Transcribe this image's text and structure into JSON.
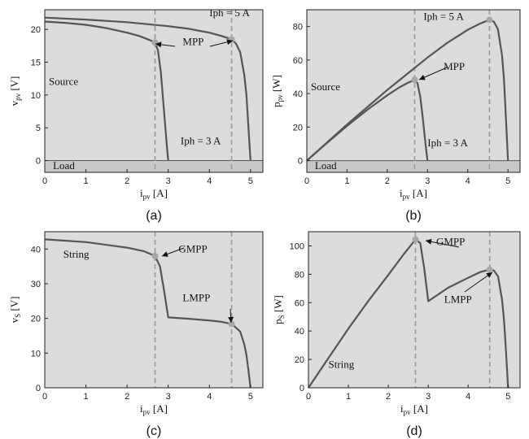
{
  "chart_data": [
    {
      "panel": "(a)",
      "type": "line",
      "xlabel": "i_pv [A]",
      "ylabel": "v_pv [V]",
      "xlim": [
        0,
        5.3
      ],
      "ylim": [
        -1.8,
        23
      ],
      "xticks": [
        0,
        1,
        2,
        3,
        4,
        5
      ],
      "yticks": [
        0,
        5,
        10,
        15,
        20
      ],
      "grid": false,
      "series": [
        {
          "name": "Iph = 5 A",
          "x": [
            0,
            1,
            2,
            3,
            3.5,
            4,
            4.3,
            4.54,
            4.65,
            4.75,
            4.85,
            4.9,
            4.95,
            4.98,
            5.0
          ],
          "y": [
            21.8,
            21.5,
            21.1,
            20.5,
            20.1,
            19.5,
            19.0,
            18.5,
            17.8,
            16.5,
            13.0,
            10.0,
            5.0,
            2.0,
            0
          ]
        },
        {
          "name": "Iph = 3 A",
          "x": [
            0,
            0.5,
            1,
            1.5,
            2,
            2.3,
            2.5,
            2.68,
            2.75,
            2.82,
            2.88,
            2.93,
            2.97,
            3.0
          ],
          "y": [
            21.2,
            21.0,
            20.7,
            20.2,
            19.5,
            19.0,
            18.5,
            18.0,
            16.8,
            13.5,
            9.0,
            5.0,
            2.0,
            0
          ]
        }
      ],
      "mpp": [
        {
          "x": 2.68,
          "y": 18.0
        },
        {
          "x": 4.54,
          "y": 18.5
        }
      ],
      "dashed_x": [
        2.68,
        4.54
      ],
      "zero_line": true,
      "load_band": [
        -1.8,
        0
      ],
      "annotations": [
        {
          "text": "Iph = 5 A",
          "x": 4.0,
          "y": 22.0
        },
        {
          "text": "MPP",
          "x": 3.35,
          "y": 17.6
        },
        {
          "text": "Source",
          "x": 0.1,
          "y": 11.5
        },
        {
          "text": "Iph = 3 A",
          "x": 3.3,
          "y": 2.5
        },
        {
          "text": "Load",
          "x": 0.2,
          "y": -1.3
        }
      ]
    },
    {
      "panel": "(b)",
      "type": "line",
      "xlabel": "i_pv [A]",
      "ylabel": "p_pv [W]",
      "xlim": [
        0,
        5.3
      ],
      "ylim": [
        -7,
        90
      ],
      "xticks": [
        0,
        1,
        2,
        3,
        4,
        5
      ],
      "yticks": [
        0,
        20,
        40,
        60,
        80
      ],
      "grid": false,
      "series": [
        {
          "name": "Iph = 5 A",
          "x": [
            0,
            1,
            2,
            3,
            3.5,
            4,
            4.3,
            4.54,
            4.65,
            4.75,
            4.85,
            4.9,
            4.95,
            4.98,
            5.0
          ],
          "y": [
            0,
            21.5,
            42.2,
            61.5,
            70.4,
            78.0,
            81.7,
            84.0,
            82.8,
            78.4,
            63.1,
            49.0,
            24.8,
            10.0,
            0
          ]
        },
        {
          "name": "Iph = 3 A",
          "x": [
            0,
            0.5,
            1,
            1.5,
            2,
            2.3,
            2.5,
            2.68,
            2.75,
            2.82,
            2.88,
            2.93,
            2.97,
            3.0
          ],
          "y": [
            0,
            10.5,
            20.7,
            30.3,
            39.0,
            43.7,
            46.3,
            48.2,
            46.2,
            38.1,
            25.9,
            14.7,
            5.9,
            0
          ]
        }
      ],
      "mpp": [
        {
          "x": 2.68,
          "y": 48.2
        },
        {
          "x": 4.54,
          "y": 84.0
        }
      ],
      "dashed_x": [
        2.68,
        4.54
      ],
      "zero_line": true,
      "load_band": [
        -7,
        0
      ],
      "annotations": [
        {
          "text": "Iph = 5 A",
          "x": 2.9,
          "y": 84.0
        },
        {
          "text": "MPP",
          "x": 3.4,
          "y": 54.0
        },
        {
          "text": "Source",
          "x": 0.1,
          "y": 42.0
        },
        {
          "text": "Iph = 3 A",
          "x": 3.0,
          "y": 8.5
        },
        {
          "text": "Load",
          "x": 0.2,
          "y": -5.0
        }
      ]
    },
    {
      "panel": "(c)",
      "type": "line",
      "xlabel": "i_pv [A]",
      "ylabel": "v_S [V]",
      "xlim": [
        0,
        5.3
      ],
      "ylim": [
        0,
        45
      ],
      "xticks": [
        0,
        1,
        2,
        3,
        4,
        5
      ],
      "yticks": [
        0,
        10,
        20,
        30,
        40
      ],
      "grid": false,
      "series": [
        {
          "name": "",
          "x": [
            0,
            1,
            2,
            2.4,
            2.68,
            2.8,
            2.9,
            3.0,
            3.5,
            4.0,
            4.3,
            4.54,
            4.65,
            4.75,
            4.85,
            4.9,
            4.95,
            4.98,
            5.0
          ],
          "y": [
            42.8,
            42.0,
            40.4,
            39.4,
            38.0,
            35.0,
            28.0,
            20.3,
            19.9,
            19.4,
            19.0,
            18.4,
            17.3,
            16.2,
            12.5,
            9.5,
            5.0,
            2.0,
            0
          ]
        }
      ],
      "mpp": [
        {
          "x": 2.68,
          "y": 38.0
        },
        {
          "x": 4.54,
          "y": 18.4
        }
      ],
      "dashed_x": [
        2.68,
        4.54
      ],
      "zero_line": false,
      "annotations": [
        {
          "text": "String",
          "x": 0.45,
          "y": 37.5
        },
        {
          "text": "GMPP",
          "x": 3.25,
          "y": 39.0
        },
        {
          "text": "LMPP",
          "x": 3.35,
          "y": 25.0
        }
      ]
    },
    {
      "panel": "(d)",
      "type": "line",
      "xlabel": "i_pv [A]",
      "ylabel": "p_S [W]",
      "xlim": [
        0,
        5.3
      ],
      "ylim": [
        0,
        110
      ],
      "xticks": [
        0,
        1,
        2,
        3,
        4,
        5
      ],
      "yticks": [
        0,
        20,
        40,
        60,
        80,
        100
      ],
      "grid": false,
      "series": [
        {
          "name": "",
          "x": [
            0,
            0.5,
            1,
            1.5,
            2,
            2.4,
            2.68,
            2.8,
            2.9,
            3.0,
            3.5,
            4.0,
            4.3,
            4.54,
            4.65,
            4.75,
            4.85,
            4.9,
            4.95,
            4.98,
            5.0
          ],
          "y": [
            0,
            20.9,
            41.7,
            61.2,
            79.5,
            94.6,
            104.5,
            102.0,
            84.0,
            61.0,
            70.5,
            77.5,
            81.5,
            83.3,
            82.5,
            78.5,
            62.0,
            47.0,
            25.0,
            10.0,
            0
          ]
        }
      ],
      "mpp": [
        {
          "x": 2.68,
          "y": 104.5
        },
        {
          "x": 4.54,
          "y": 83.3
        }
      ],
      "dashed_x": [
        2.68,
        4.54
      ],
      "zero_line": false,
      "annotations": [
        {
          "text": "GMPP",
          "x": 3.2,
          "y": 100.5
        },
        {
          "text": "LMPP",
          "x": 3.4,
          "y": 60.0
        },
        {
          "text": "String",
          "x": 0.5,
          "y": 14.0
        }
      ]
    }
  ]
}
